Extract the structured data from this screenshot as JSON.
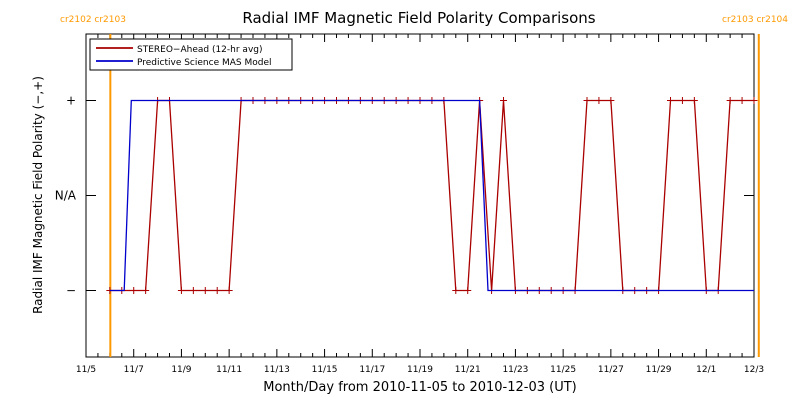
{
  "chart_data": {
    "type": "line",
    "title": "Radial IMF Magnetic Field Polarity Comparisons",
    "xlabel": "Month/Day from 2010-11-05 to 2010-12-03 (UT)",
    "ylabel": "Radial IMF Magnetic Field Polarity (−,+)",
    "xlim": [
      0,
      28
    ],
    "ylim": [
      -1.7,
      1.7
    ],
    "grid": false,
    "legend_position": "top-left",
    "x_ticks": [
      {
        "day": 0,
        "label": "11/5"
      },
      {
        "day": 2,
        "label": "11/7"
      },
      {
        "day": 4,
        "label": "11/9"
      },
      {
        "day": 6,
        "label": "11/11"
      },
      {
        "day": 8,
        "label": "11/13"
      },
      {
        "day": 10,
        "label": "11/15"
      },
      {
        "day": 12,
        "label": "11/17"
      },
      {
        "day": 14,
        "label": "11/19"
      },
      {
        "day": 16,
        "label": "11/21"
      },
      {
        "day": 18,
        "label": "11/23"
      },
      {
        "day": 20,
        "label": "11/25"
      },
      {
        "day": 22,
        "label": "11/27"
      },
      {
        "day": 24,
        "label": "11/29"
      },
      {
        "day": 26,
        "label": "12/1"
      },
      {
        "day": 28,
        "label": "12/3"
      }
    ],
    "y_ticks": [
      {
        "value": 1,
        "label": "+"
      },
      {
        "value": 0,
        "label": "N/A"
      },
      {
        "value": -1,
        "label": "−"
      }
    ],
    "carrington_markers": [
      {
        "day": 1.02,
        "label": "cr2102 cr2103",
        "color": "#ff9900"
      },
      {
        "day": 28.2,
        "label": "cr2103 cr2104",
        "color": "#ff9900"
      }
    ],
    "series": [
      {
        "name": "STEREO−Ahead (12-hr avg)",
        "color": "#aa0000",
        "markers": true,
        "points": [
          [
            1.0,
            -1
          ],
          [
            1.5,
            -1
          ],
          [
            2.0,
            -1
          ],
          [
            2.5,
            -1
          ],
          [
            3.0,
            1
          ],
          [
            3.5,
            1
          ],
          [
            4.0,
            -1
          ],
          [
            4.5,
            -1
          ],
          [
            5.0,
            -1
          ],
          [
            5.5,
            -1
          ],
          [
            6.0,
            -1
          ],
          [
            6.5,
            1
          ],
          [
            7.0,
            1
          ],
          [
            7.5,
            1
          ],
          [
            8.0,
            1
          ],
          [
            8.5,
            1
          ],
          [
            9.0,
            1
          ],
          [
            9.5,
            1
          ],
          [
            10.0,
            1
          ],
          [
            10.5,
            1
          ],
          [
            11.0,
            1
          ],
          [
            11.5,
            1
          ],
          [
            12.0,
            1
          ],
          [
            12.5,
            1
          ],
          [
            13.0,
            1
          ],
          [
            13.5,
            1
          ],
          [
            14.0,
            1
          ],
          [
            14.5,
            1
          ],
          [
            15.0,
            1
          ],
          [
            15.5,
            -1
          ],
          [
            16.0,
            -1
          ],
          [
            16.5,
            1
          ],
          [
            17.0,
            -1
          ],
          [
            17.5,
            1
          ],
          [
            18.0,
            -1
          ],
          [
            18.5,
            -1
          ],
          [
            19.0,
            -1
          ],
          [
            19.5,
            -1
          ],
          [
            20.0,
            -1
          ],
          [
            20.5,
            -1
          ],
          [
            21.0,
            1
          ],
          [
            21.5,
            1
          ],
          [
            22.0,
            1
          ],
          [
            22.5,
            -1
          ],
          [
            23.0,
            -1
          ],
          [
            23.5,
            -1
          ],
          [
            24.0,
            -1
          ],
          [
            24.5,
            1
          ],
          [
            25.0,
            1
          ],
          [
            25.5,
            1
          ],
          [
            26.0,
            -1
          ],
          [
            26.5,
            -1
          ],
          [
            27.0,
            1
          ],
          [
            27.5,
            1
          ],
          [
            28.0,
            1
          ]
        ]
      },
      {
        "name": "Predictive Science MAS Model",
        "color": "#0000cc",
        "markers": false,
        "points": [
          [
            1.0,
            -1
          ],
          [
            1.6,
            -1
          ],
          [
            1.9,
            1
          ],
          [
            16.5,
            1
          ],
          [
            16.85,
            -1
          ],
          [
            28.0,
            -1
          ]
        ]
      }
    ]
  }
}
